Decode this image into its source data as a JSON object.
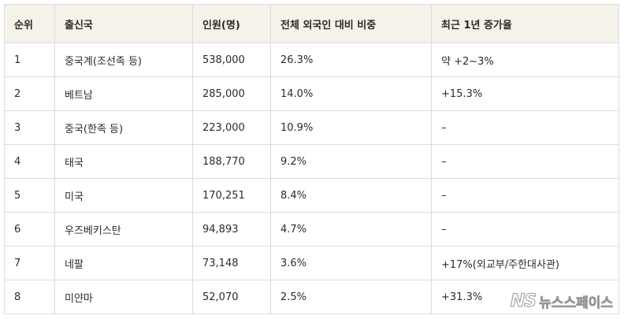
{
  "table": {
    "headers": [
      "순위",
      "출신국",
      "인원(명)",
      "전체 외국인 대비 비중",
      "최근 1년 증가율"
    ],
    "rows": [
      [
        "1",
        "중국계(조선족 등)",
        "538,000",
        "26.3%",
        "약 +2~3%"
      ],
      [
        "2",
        "베트남",
        "285,000",
        "14.0%",
        "+15.3%"
      ],
      [
        "3",
        "중국(한족 등)",
        "223,000",
        "10.9%",
        "–"
      ],
      [
        "4",
        "태국",
        "188,770",
        "9.2%",
        "–"
      ],
      [
        "5",
        "미국",
        "170,251",
        "8.4%",
        "–"
      ],
      [
        "6",
        "우즈베키스탄",
        "94,893",
        "4.7%",
        "–"
      ],
      [
        "7",
        "네팔",
        "73,148",
        "3.6%",
        "+17%(외교부/주한대사관)"
      ],
      [
        "8",
        "미얀마",
        "52,070",
        "2.5%",
        "+31.3%"
      ]
    ]
  },
  "watermark": {
    "logo": "NS",
    "text": "뉴스스페이스"
  }
}
